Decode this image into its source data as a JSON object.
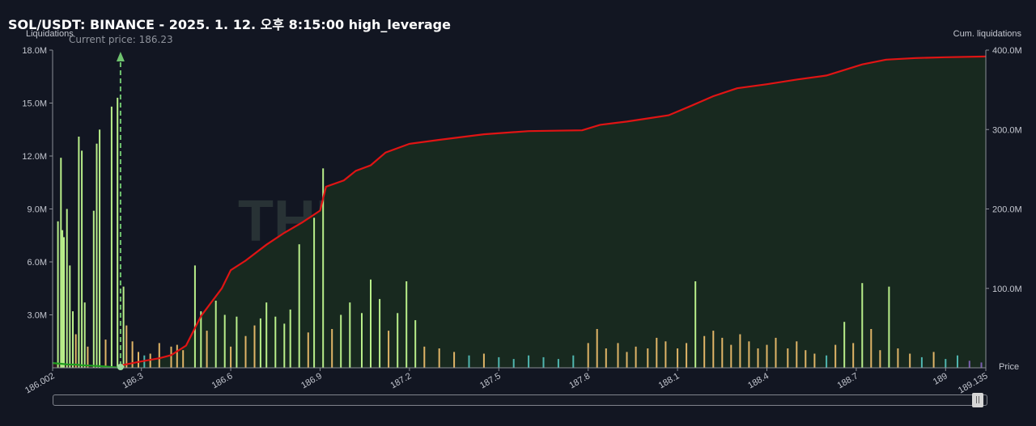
{
  "title": "SOL/USDT: BINANCE - 2025. 1. 12. 오후 8:15:00 high_leverage",
  "chart_data": {
    "type": "bar",
    "ylabel_left": "Liquidations",
    "ylabel_right": "Cum. liquidations",
    "xlabel": "Price",
    "current_price_label": "Current price: 186.23",
    "current_price": 186.23,
    "x_range": [
      186.002,
      189.135
    ],
    "y_left_range": [
      0,
      18000000
    ],
    "y_right_range": [
      0,
      400000000
    ],
    "y_left_ticks": [
      "3.0M",
      "6.0M",
      "9.0M",
      "12.0M",
      "15.0M",
      "18.0M"
    ],
    "y_left_tick_values": [
      3000000,
      6000000,
      9000000,
      12000000,
      15000000,
      18000000
    ],
    "y_right_ticks": [
      "100.0M",
      "200.0M",
      "300.0M",
      "400.0M"
    ],
    "y_right_tick_values": [
      100000000,
      200000000,
      300000000,
      400000000
    ],
    "x_ticks": [
      "186.002",
      "186.3",
      "186.6",
      "186.9",
      "187.2",
      "187.5",
      "187.8",
      "188.1",
      "188.4",
      "188.7",
      "189",
      "189.135"
    ],
    "x_tick_values": [
      186.002,
      186.3,
      186.6,
      186.9,
      187.2,
      187.5,
      187.8,
      188.1,
      188.4,
      188.7,
      189,
      189.135
    ],
    "watermark": "THE KINGFISHER.io",
    "colors": {
      "background": "#121622",
      "bar_high": "#b9ef8a",
      "bar_mid": "#e0b567",
      "bar_low": "#4fb6b0",
      "bar_tiny": "#7a5fb0",
      "cum_short": "#e01414",
      "cum_long": "#1f9d1f",
      "fill_short": "#18291f",
      "fill_long": "#2c1820",
      "current_price": "#6fc36f"
    },
    "bars": [
      [
        186.02,
        8300000
      ],
      [
        186.03,
        11900000
      ],
      [
        186.035,
        7800000
      ],
      [
        186.04,
        7400000
      ],
      [
        186.05,
        9000000
      ],
      [
        186.06,
        5800000
      ],
      [
        186.07,
        3200000
      ],
      [
        186.08,
        1900000
      ],
      [
        186.09,
        13100000
      ],
      [
        186.1,
        12300000
      ],
      [
        186.11,
        3700000
      ],
      [
        186.12,
        1200000
      ],
      [
        186.14,
        8900000
      ],
      [
        186.15,
        12700000
      ],
      [
        186.16,
        13500000
      ],
      [
        186.18,
        1600000
      ],
      [
        186.2,
        14800000
      ],
      [
        186.22,
        15300000
      ],
      [
        186.24,
        4600000
      ],
      [
        186.25,
        2400000
      ],
      [
        186.27,
        1500000
      ],
      [
        186.29,
        900000
      ],
      [
        186.31,
        700000
      ],
      [
        186.33,
        800000
      ],
      [
        186.36,
        1400000
      ],
      [
        186.4,
        1200000
      ],
      [
        186.42,
        1300000
      ],
      [
        186.44,
        1000000
      ],
      [
        186.48,
        5800000
      ],
      [
        186.5,
        3200000
      ],
      [
        186.52,
        2100000
      ],
      [
        186.55,
        3800000
      ],
      [
        186.58,
        3000000
      ],
      [
        186.6,
        1200000
      ],
      [
        186.62,
        2900000
      ],
      [
        186.65,
        1800000
      ],
      [
        186.68,
        2400000
      ],
      [
        186.7,
        2800000
      ],
      [
        186.72,
        3700000
      ],
      [
        186.75,
        2900000
      ],
      [
        186.78,
        2500000
      ],
      [
        186.8,
        3300000
      ],
      [
        186.83,
        7000000
      ],
      [
        186.86,
        2000000
      ],
      [
        186.88,
        8500000
      ],
      [
        186.91,
        11300000
      ],
      [
        186.94,
        2200000
      ],
      [
        186.97,
        3000000
      ],
      [
        187.0,
        3700000
      ],
      [
        187.04,
        3100000
      ],
      [
        187.07,
        5000000
      ],
      [
        187.1,
        3900000
      ],
      [
        187.13,
        2100000
      ],
      [
        187.16,
        3100000
      ],
      [
        187.19,
        4900000
      ],
      [
        187.22,
        2700000
      ],
      [
        187.25,
        1200000
      ],
      [
        187.3,
        1100000
      ],
      [
        187.35,
        900000
      ],
      [
        187.4,
        700000
      ],
      [
        187.45,
        800000
      ],
      [
        187.5,
        600000
      ],
      [
        187.55,
        500000
      ],
      [
        187.6,
        700000
      ],
      [
        187.65,
        600000
      ],
      [
        187.7,
        500000
      ],
      [
        187.75,
        700000
      ],
      [
        187.8,
        1400000
      ],
      [
        187.83,
        2200000
      ],
      [
        187.86,
        1100000
      ],
      [
        187.9,
        1400000
      ],
      [
        187.93,
        900000
      ],
      [
        187.96,
        1200000
      ],
      [
        188.0,
        1100000
      ],
      [
        188.03,
        1700000
      ],
      [
        188.06,
        1500000
      ],
      [
        188.1,
        1100000
      ],
      [
        188.13,
        1400000
      ],
      [
        188.16,
        4900000
      ],
      [
        188.19,
        1800000
      ],
      [
        188.22,
        2100000
      ],
      [
        188.25,
        1700000
      ],
      [
        188.28,
        1300000
      ],
      [
        188.31,
        1900000
      ],
      [
        188.34,
        1500000
      ],
      [
        188.37,
        1100000
      ],
      [
        188.4,
        1300000
      ],
      [
        188.43,
        1700000
      ],
      [
        188.47,
        1100000
      ],
      [
        188.5,
        1500000
      ],
      [
        188.53,
        1000000
      ],
      [
        188.56,
        800000
      ],
      [
        188.6,
        700000
      ],
      [
        188.63,
        1300000
      ],
      [
        188.66,
        2600000
      ],
      [
        188.69,
        1400000
      ],
      [
        188.72,
        4800000
      ],
      [
        188.75,
        2200000
      ],
      [
        188.78,
        1000000
      ],
      [
        188.81,
        4600000
      ],
      [
        188.84,
        1100000
      ],
      [
        188.88,
        800000
      ],
      [
        188.92,
        600000
      ],
      [
        188.96,
        900000
      ],
      [
        189.0,
        500000
      ],
      [
        189.04,
        700000
      ],
      [
        189.08,
        400000
      ],
      [
        189.12,
        300000
      ]
    ],
    "cum_short": [
      [
        186.23,
        3000000
      ],
      [
        186.3,
        8000000
      ],
      [
        186.36,
        12000000
      ],
      [
        186.4,
        16000000
      ],
      [
        186.45,
        28000000
      ],
      [
        186.5,
        65000000
      ],
      [
        186.53,
        80000000
      ],
      [
        186.57,
        100000000
      ],
      [
        186.6,
        123000000
      ],
      [
        186.65,
        135000000
      ],
      [
        186.72,
        155000000
      ],
      [
        186.78,
        170000000
      ],
      [
        186.84,
        183000000
      ],
      [
        186.9,
        198000000
      ],
      [
        186.92,
        228000000
      ],
      [
        186.98,
        236000000
      ],
      [
        187.02,
        248000000
      ],
      [
        187.07,
        255000000
      ],
      [
        187.12,
        271000000
      ],
      [
        187.2,
        282000000
      ],
      [
        187.3,
        287000000
      ],
      [
        187.45,
        294000000
      ],
      [
        187.6,
        298000000
      ],
      [
        187.78,
        299000000
      ],
      [
        187.84,
        306000000
      ],
      [
        187.93,
        310000000
      ],
      [
        188.0,
        314000000
      ],
      [
        188.07,
        318000000
      ],
      [
        188.14,
        329000000
      ],
      [
        188.22,
        342000000
      ],
      [
        188.3,
        352000000
      ],
      [
        188.4,
        357000000
      ],
      [
        188.5,
        363000000
      ],
      [
        188.6,
        368000000
      ],
      [
        188.66,
        375000000
      ],
      [
        188.72,
        382000000
      ],
      [
        188.8,
        388000000
      ],
      [
        188.9,
        390000000
      ],
      [
        189.0,
        391000000
      ],
      [
        189.135,
        392000000
      ]
    ],
    "cum_long": [
      [
        186.002,
        6000000
      ],
      [
        186.03,
        5100000
      ],
      [
        186.05,
        4300000
      ],
      [
        186.08,
        4100000
      ],
      [
        186.1,
        3300000
      ],
      [
        186.13,
        2700000
      ],
      [
        186.17,
        1900000
      ],
      [
        186.2,
        900000
      ],
      [
        186.23,
        100000
      ]
    ]
  }
}
